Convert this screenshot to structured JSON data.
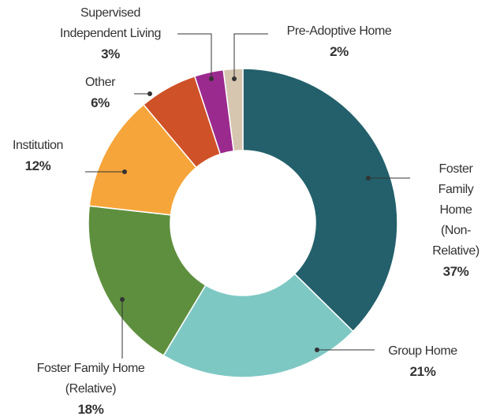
{
  "chart_data": {
    "type": "donut",
    "categories": [
      "Foster\nFamily Home\n(Non-Relative)",
      "Group Home",
      "Foster Family Home\n(Relative)",
      "Institution",
      "Other",
      "Supervised\nIndependent Living",
      "Pre-Adoptive Home"
    ],
    "values": [
      37,
      21,
      18,
      12,
      6,
      3,
      2
    ],
    "value_labels": [
      "37%",
      "21%",
      "18%",
      "12%",
      "6%",
      "3%",
      "2%"
    ],
    "colors": [
      "#23606b",
      "#7ec8c4",
      "#5e8f3e",
      "#f6a53a",
      "#cf5128",
      "#9b2a8f",
      "#d6c6b0"
    ]
  }
}
